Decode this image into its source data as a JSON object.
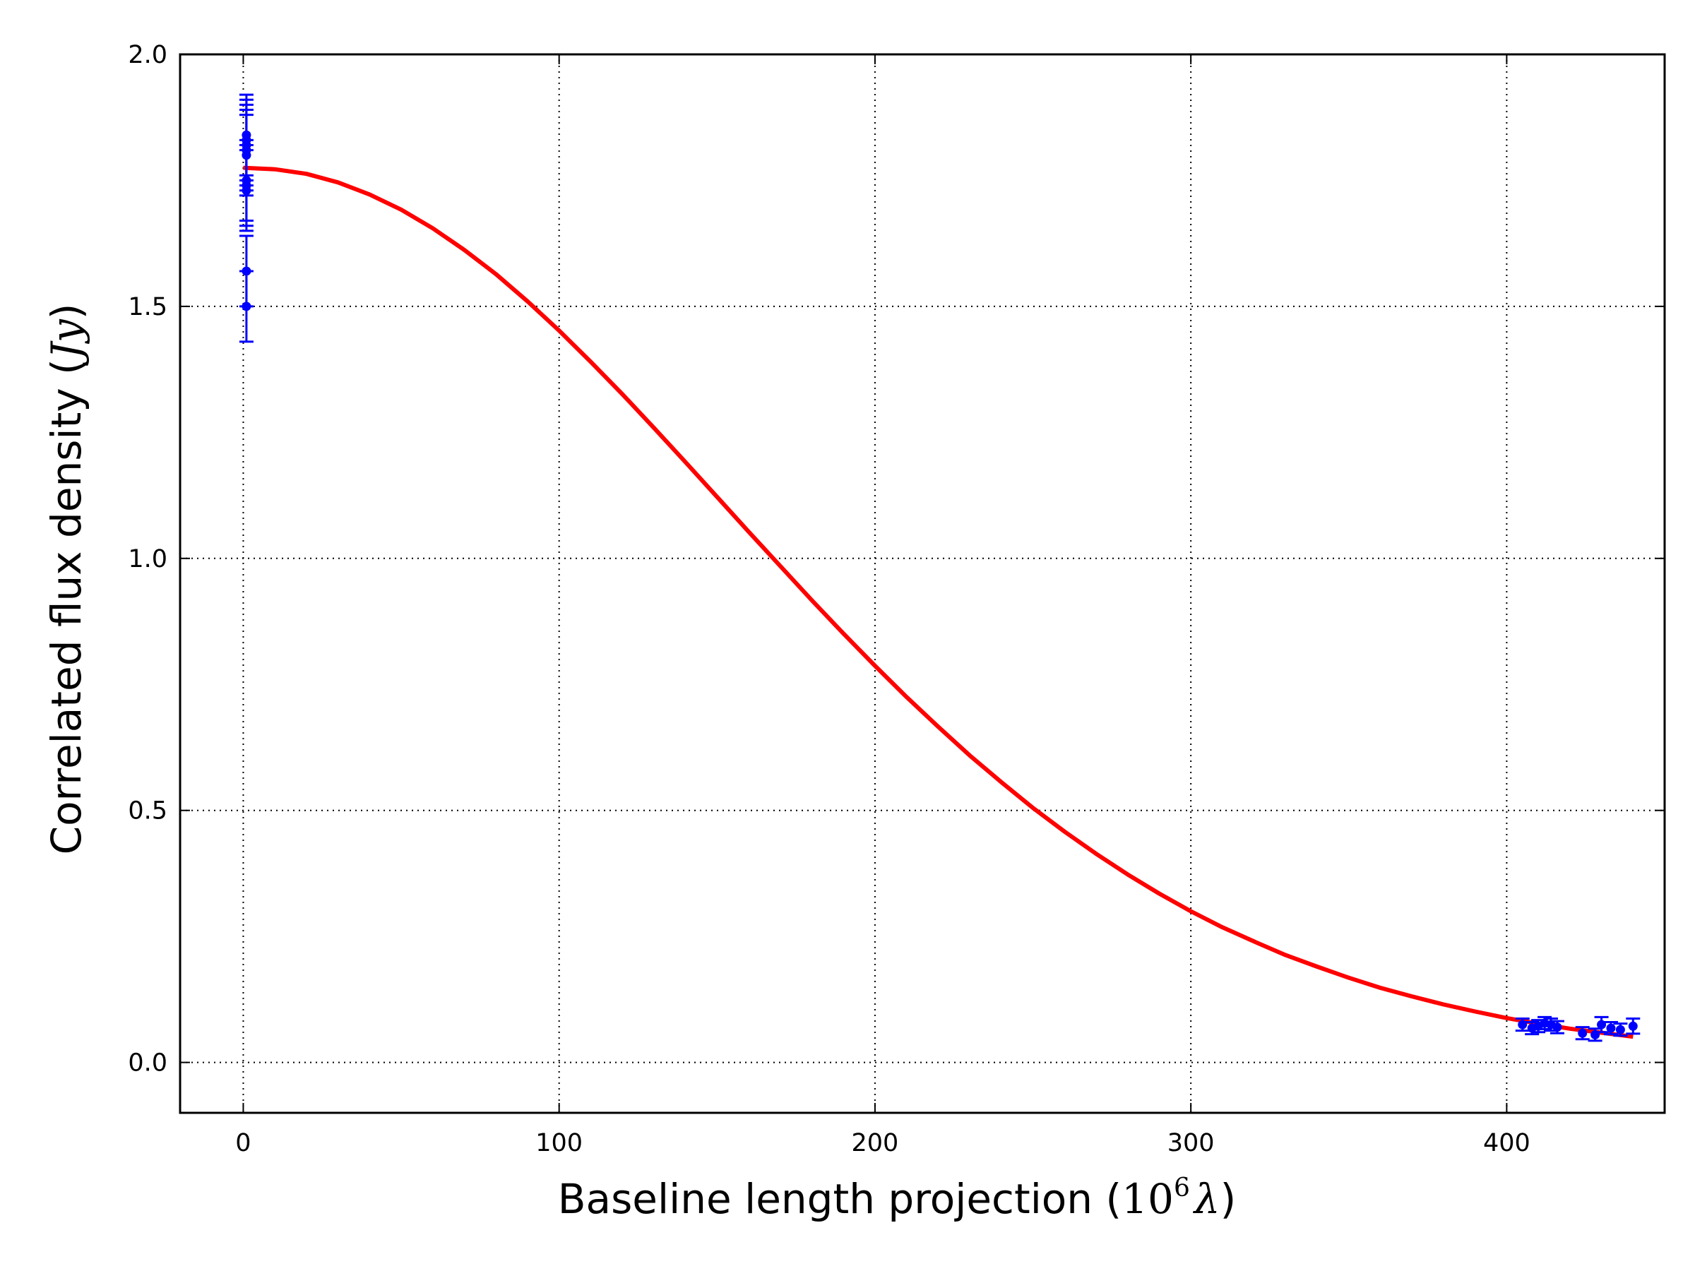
{
  "chart_data": {
    "type": "scatter",
    "title": "",
    "xlabel": {
      "text": "Baseline length projection (",
      "math_base": "10",
      "math_exp": "6",
      "math_sym": "λ",
      "close": ")"
    },
    "ylabel": {
      "text": "Correlated flux density (",
      "math": "Jy",
      "close": ")"
    },
    "xlim": [
      -20,
      450
    ],
    "ylim": [
      -0.1,
      2.0
    ],
    "x_ticks": [
      0,
      100,
      200,
      300,
      400
    ],
    "x_tick_labels": [
      "0",
      "100",
      "200",
      "300",
      "400"
    ],
    "y_ticks": [
      0.0,
      0.5,
      1.0,
      1.5,
      2.0
    ],
    "y_tick_labels": [
      "0.0",
      "0.5",
      "1.0",
      "1.5",
      "2.0"
    ],
    "grid": true,
    "grid_style": "dotted",
    "colors": {
      "data": "#0000ff",
      "model": "#ff0000",
      "grid": "#000000"
    },
    "series": [
      {
        "kind": "points_with_errorbars",
        "x": [
          1,
          1,
          1,
          1,
          1,
          1,
          1,
          1,
          1,
          1,
          405,
          408,
          410,
          412,
          414,
          416,
          424,
          428,
          430,
          433,
          436,
          440
        ],
        "y": [
          1.5,
          1.57,
          1.73,
          1.74,
          1.75,
          1.8,
          1.81,
          1.82,
          1.83,
          1.84,
          0.075,
          0.068,
          0.072,
          0.078,
          0.075,
          0.07,
          0.058,
          0.055,
          0.075,
          0.068,
          0.065,
          0.072
        ],
        "err": [
          0.07,
          0.07,
          0.08,
          0.08,
          0.08,
          0.08,
          0.08,
          0.08,
          0.08,
          0.08,
          0.012,
          0.012,
          0.012,
          0.012,
          0.012,
          0.012,
          0.012,
          0.012,
          0.015,
          0.012,
          0.012,
          0.015
        ]
      },
      {
        "kind": "model_line",
        "x": [
          0,
          10,
          20,
          30,
          40,
          50,
          60,
          70,
          80,
          90,
          100,
          110,
          120,
          130,
          140,
          150,
          160,
          170,
          180,
          190,
          200,
          210,
          220,
          230,
          240,
          250,
          260,
          270,
          280,
          290,
          300,
          310,
          320,
          330,
          340,
          350,
          360,
          370,
          380,
          390,
          400,
          410,
          420,
          430,
          440
        ],
        "y": [
          1.775,
          1.772,
          1.763,
          1.746,
          1.722,
          1.692,
          1.655,
          1.612,
          1.564,
          1.51,
          1.452,
          1.39,
          1.326,
          1.259,
          1.191,
          1.122,
          1.053,
          0.985,
          0.917,
          0.851,
          0.787,
          0.725,
          0.666,
          0.609,
          0.556,
          0.505,
          0.458,
          0.414,
          0.373,
          0.335,
          0.3,
          0.268,
          0.24,
          0.213,
          0.19,
          0.168,
          0.148,
          0.131,
          0.115,
          0.101,
          0.088,
          0.077,
          0.067,
          0.059,
          0.051
        ]
      }
    ]
  }
}
